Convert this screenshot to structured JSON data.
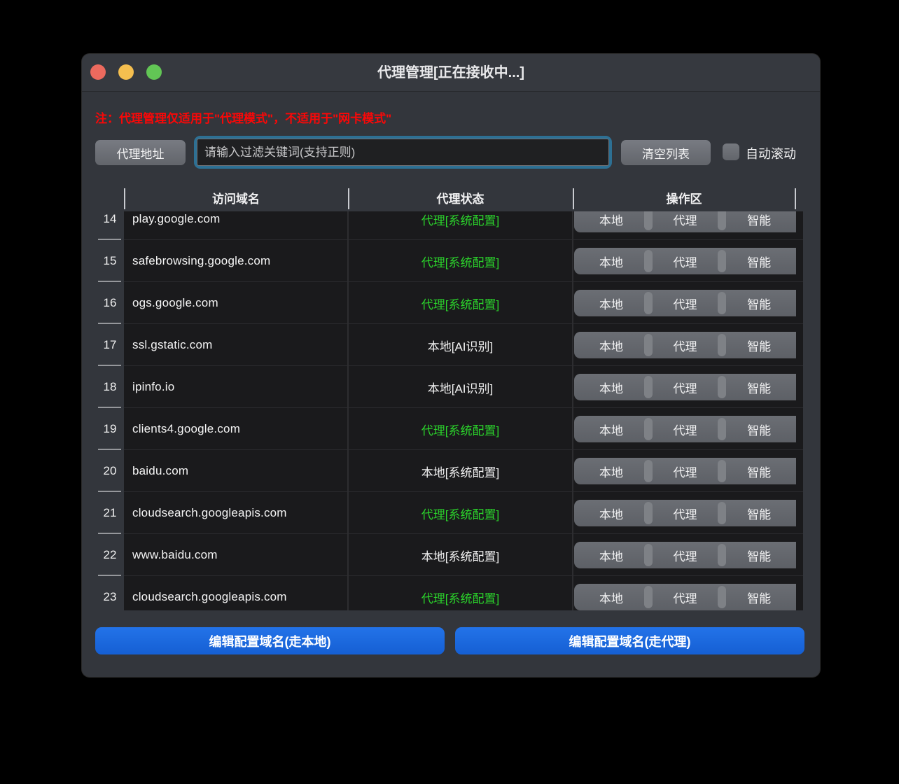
{
  "window": {
    "title": "代理管理[正在接收中...]"
  },
  "notice": "注：代理管理仅适用于\"代理模式\"，不适用于\"网卡模式\"",
  "toolbar": {
    "proxy_address_label": "代理地址",
    "filter_placeholder": "请输入过滤关键词(支持正则)",
    "clear_list_label": "清空列表",
    "auto_scroll_label": "自动滚动",
    "auto_scroll_checked": false
  },
  "table": {
    "headers": {
      "domain": "访问域名",
      "status": "代理状态",
      "actions": "操作区"
    },
    "action_labels": [
      "本地",
      "代理",
      "智能"
    ],
    "rows": [
      {
        "num": "14",
        "domain": "play.google.com",
        "status": "代理[系统配置]",
        "status_type": "proxy"
      },
      {
        "num": "15",
        "domain": "safebrowsing.google.com",
        "status": "代理[系统配置]",
        "status_type": "proxy"
      },
      {
        "num": "16",
        "domain": "ogs.google.com",
        "status": "代理[系统配置]",
        "status_type": "proxy"
      },
      {
        "num": "17",
        "domain": "ssl.gstatic.com",
        "status": "本地[AI识别]",
        "status_type": "local"
      },
      {
        "num": "18",
        "domain": "ipinfo.io",
        "status": "本地[AI识别]",
        "status_type": "local"
      },
      {
        "num": "19",
        "domain": "clients4.google.com",
        "status": "代理[系统配置]",
        "status_type": "proxy"
      },
      {
        "num": "20",
        "domain": "baidu.com",
        "status": "本地[系统配置]",
        "status_type": "local"
      },
      {
        "num": "21",
        "domain": "cloudsearch.googleapis.com",
        "status": "代理[系统配置]",
        "status_type": "proxy"
      },
      {
        "num": "22",
        "domain": "www.baidu.com",
        "status": "本地[系统配置]",
        "status_type": "local"
      },
      {
        "num": "23",
        "domain": "cloudsearch.googleapis.com",
        "status": "代理[系统配置]",
        "status_type": "proxy"
      }
    ]
  },
  "footer": {
    "edit_local_label": "编辑配置域名(走本地)",
    "edit_proxy_label": "编辑配置域名(走代理)"
  },
  "colors": {
    "status_proxy_green": "#2bd42b",
    "status_local_white": "#f2f2f2",
    "accent_blue": "#1b69e0",
    "focus_ring_blue": "#2d7094",
    "warning_red": "#fb0707"
  }
}
